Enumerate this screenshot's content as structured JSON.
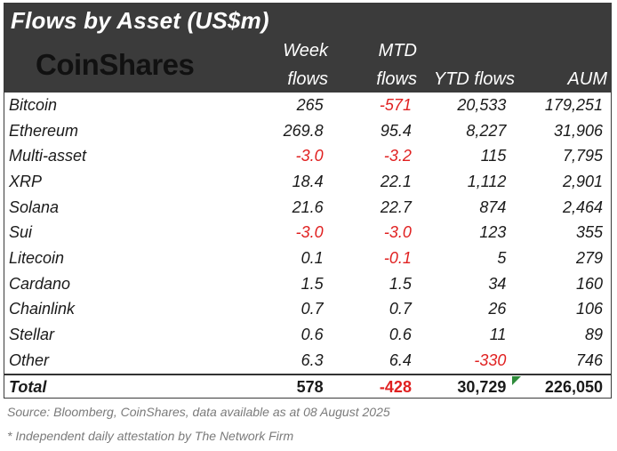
{
  "title": "Flows by Asset (US$m)",
  "logo_text": "CoinShares",
  "columns": {
    "week_line1": "Week",
    "week_line2": "flows",
    "mtd_line1": "MTD",
    "mtd_line2": "flows",
    "ytd": "YTD flows",
    "aum": "AUM"
  },
  "rows": [
    {
      "asset": "Bitcoin",
      "week": "265",
      "mtd": "-571",
      "ytd": "20,533",
      "aum": "179,251"
    },
    {
      "asset": "Ethereum",
      "week": "269.8",
      "mtd": "95.4",
      "ytd": "8,227",
      "aum": "31,906"
    },
    {
      "asset": "Multi-asset",
      "week": "-3.0",
      "mtd": "-3.2",
      "ytd": "115",
      "aum": "7,795"
    },
    {
      "asset": "XRP",
      "week": "18.4",
      "mtd": "22.1",
      "ytd": "1,112",
      "aum": "2,901"
    },
    {
      "asset": "Solana",
      "week": "21.6",
      "mtd": "22.7",
      "ytd": "874",
      "aum": "2,464"
    },
    {
      "asset": "Sui",
      "week": "-3.0",
      "mtd": "-3.0",
      "ytd": "123",
      "aum": "355"
    },
    {
      "asset": "Litecoin",
      "week": "0.1",
      "mtd": "-0.1",
      "ytd": "5",
      "aum": "279"
    },
    {
      "asset": "Cardano",
      "week": "1.5",
      "mtd": "1.5",
      "ytd": "34",
      "aum": "160"
    },
    {
      "asset": "Chainlink",
      "week": "0.7",
      "mtd": "0.7",
      "ytd": "26",
      "aum": "106"
    },
    {
      "asset": "Stellar",
      "week": "0.6",
      "mtd": "0.6",
      "ytd": "11",
      "aum": "89"
    },
    {
      "asset": "Other",
      "week": "6.3",
      "mtd": "6.4",
      "ytd": "-330",
      "aum": "746"
    }
  ],
  "total": {
    "asset": "Total",
    "week": "578",
    "mtd": "-428",
    "ytd": "30,729",
    "aum": "226,050"
  },
  "source": "Source: Bloomberg, CoinShares, data available as at 08 August 2025",
  "footnote": "* Independent daily attestation by The Network Firm",
  "colors": {
    "header_bg": "#3b3b3b",
    "negative": "#e02020",
    "marker": "#2e8b3a"
  }
}
